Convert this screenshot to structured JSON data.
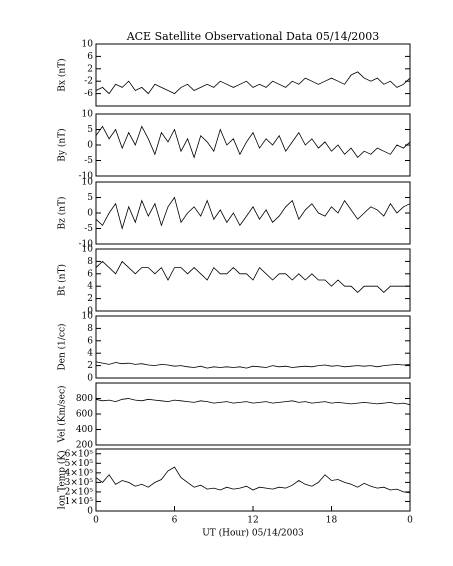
{
  "chart_data": [
    {
      "type": "line",
      "title": "ACE Satellite Observational Data   05/14/2003",
      "ylabel": "Bx (nT)",
      "xlim": [
        0,
        24
      ],
      "ylim": [
        -10,
        10
      ],
      "yticks": [
        -6,
        -2,
        2,
        6,
        10
      ],
      "color": "#000000",
      "x": [
        0,
        0.5,
        1,
        1.5,
        2,
        2.5,
        3,
        3.5,
        4,
        4.5,
        5,
        5.5,
        6,
        6.5,
        7,
        7.5,
        8,
        8.5,
        9,
        9.5,
        10,
        10.5,
        11,
        11.5,
        12,
        12.5,
        13,
        13.5,
        14,
        14.5,
        15,
        15.5,
        16,
        16.5,
        17,
        17.5,
        18,
        18.5,
        19,
        19.5,
        20,
        20.5,
        21,
        21.5,
        22,
        22.5,
        23,
        23.5,
        24
      ],
      "values": [
        -5,
        -4,
        -6,
        -3,
        -4,
        -2,
        -5,
        -4,
        -6,
        -3,
        -4,
        -5,
        -6,
        -4,
        -3,
        -5,
        -4,
        -3,
        -4,
        -2,
        -3,
        -4,
        -3,
        -2,
        -4,
        -3,
        -4,
        -2,
        -3,
        -4,
        -2,
        -3,
        -1,
        -2,
        -3,
        -2,
        -1,
        -2,
        -3,
        0,
        1,
        -1,
        -2,
        -1,
        -3,
        -2,
        -4,
        -3,
        -1
      ]
    },
    {
      "type": "line",
      "ylabel": "By (nT)",
      "xlim": [
        0,
        24
      ],
      "ylim": [
        -10,
        10
      ],
      "yticks": [
        -10,
        -5,
        0,
        5,
        10
      ],
      "color": "#000000",
      "x": [
        0,
        0.5,
        1,
        1.5,
        2,
        2.5,
        3,
        3.5,
        4,
        4.5,
        5,
        5.5,
        6,
        6.5,
        7,
        7.5,
        8,
        8.5,
        9,
        9.5,
        10,
        10.5,
        11,
        11.5,
        12,
        12.5,
        13,
        13.5,
        14,
        14.5,
        15,
        15.5,
        16,
        16.5,
        17,
        17.5,
        18,
        18.5,
        19,
        19.5,
        20,
        20.5,
        21,
        21.5,
        22,
        22.5,
        23,
        23.5,
        24
      ],
      "values": [
        3,
        6,
        2,
        5,
        -1,
        4,
        0,
        6,
        2,
        -3,
        4,
        1,
        5,
        -2,
        2,
        -4,
        3,
        1,
        -2,
        5,
        0,
        2,
        -3,
        1,
        4,
        -1,
        2,
        0,
        3,
        -2,
        1,
        4,
        0,
        2,
        -1,
        1,
        -2,
        0,
        -3,
        -1,
        -4,
        -2,
        -3,
        -1,
        -2,
        -3,
        0,
        -1,
        1
      ]
    },
    {
      "type": "line",
      "ylabel": "Bz (nT)",
      "xlim": [
        0,
        24
      ],
      "ylim": [
        -10,
        10
      ],
      "yticks": [
        -10,
        -5,
        0,
        5,
        10
      ],
      "color": "#000000",
      "x": [
        0,
        0.5,
        1,
        1.5,
        2,
        2.5,
        3,
        3.5,
        4,
        4.5,
        5,
        5.5,
        6,
        6.5,
        7,
        7.5,
        8,
        8.5,
        9,
        9.5,
        10,
        10.5,
        11,
        11.5,
        12,
        12.5,
        13,
        13.5,
        14,
        14.5,
        15,
        15.5,
        16,
        16.5,
        17,
        17.5,
        18,
        18.5,
        19,
        19.5,
        20,
        20.5,
        21,
        21.5,
        22,
        22.5,
        23,
        23.5,
        24
      ],
      "values": [
        -2,
        -4,
        0,
        3,
        -5,
        2,
        -3,
        4,
        -1,
        3,
        -4,
        2,
        5,
        -3,
        0,
        2,
        -1,
        4,
        -2,
        1,
        -3,
        0,
        -4,
        -1,
        2,
        -2,
        1,
        -3,
        -1,
        2,
        4,
        -2,
        1,
        3,
        0,
        -1,
        2,
        0,
        4,
        1,
        -2,
        0,
        2,
        1,
        -1,
        3,
        0,
        2,
        3
      ]
    },
    {
      "type": "line",
      "ylabel": "Bt (nT)",
      "xlim": [
        0,
        24
      ],
      "ylim": [
        0,
        10
      ],
      "yticks": [
        0,
        2,
        4,
        6,
        8,
        10
      ],
      "color": "#000000",
      "x": [
        0,
        0.5,
        1,
        1.5,
        2,
        2.5,
        3,
        3.5,
        4,
        4.5,
        5,
        5.5,
        6,
        6.5,
        7,
        7.5,
        8,
        8.5,
        9,
        9.5,
        10,
        10.5,
        11,
        11.5,
        12,
        12.5,
        13,
        13.5,
        14,
        14.5,
        15,
        15.5,
        16,
        16.5,
        17,
        17.5,
        18,
        18.5,
        19,
        19.5,
        20,
        20.5,
        21,
        21.5,
        22,
        22.5,
        23,
        23.5,
        24
      ],
      "values": [
        7,
        8,
        7,
        6,
        8,
        7,
        6,
        7,
        7,
        6,
        7,
        5,
        7,
        7,
        6,
        7,
        6,
        5,
        7,
        6,
        6,
        7,
        6,
        6,
        5,
        7,
        6,
        5,
        6,
        6,
        5,
        6,
        5,
        6,
        5,
        5,
        4,
        5,
        4,
        4,
        3,
        4,
        4,
        4,
        3,
        4,
        4,
        4,
        4
      ]
    },
    {
      "type": "line",
      "ylabel": "Den (1/cc)",
      "xlim": [
        0,
        24
      ],
      "ylim": [
        0,
        10
      ],
      "yticks": [
        0,
        2,
        4,
        6,
        8,
        10
      ],
      "color": "#000000",
      "x": [
        0,
        0.5,
        1,
        1.5,
        2,
        2.5,
        3,
        3.5,
        4,
        4.5,
        5,
        5.5,
        6,
        6.5,
        7,
        7.5,
        8,
        8.5,
        9,
        9.5,
        10,
        10.5,
        11,
        11.5,
        12,
        12.5,
        13,
        13.5,
        14,
        14.5,
        15,
        15.5,
        16,
        16.5,
        17,
        17.5,
        18,
        18.5,
        19,
        19.5,
        20,
        20.5,
        21,
        21.5,
        22,
        22.5,
        23,
        23.5,
        24
      ],
      "values": [
        2.6,
        2.4,
        2.2,
        2.5,
        2.3,
        2.4,
        2.2,
        2.3,
        2.1,
        2.0,
        2.2,
        2.1,
        1.9,
        2.0,
        1.8,
        1.7,
        1.9,
        1.6,
        1.8,
        1.7,
        1.8,
        1.7,
        1.8,
        1.6,
        1.9,
        1.8,
        1.7,
        2.0,
        1.8,
        1.9,
        1.7,
        1.8,
        1.9,
        1.8,
        2.0,
        2.1,
        1.9,
        2.0,
        1.8,
        1.9,
        2.0,
        1.9,
        2.0,
        1.8,
        2.0,
        2.1,
        2.2,
        2.1,
        2.2
      ]
    },
    {
      "type": "line",
      "ylabel": "Vel (Km/sec)",
      "xlim": [
        0,
        24
      ],
      "ylim": [
        200,
        1000
      ],
      "yticks": [
        200,
        400,
        600,
        800
      ],
      "color": "#000000",
      "x": [
        0,
        0.5,
        1,
        1.5,
        2,
        2.5,
        3,
        3.5,
        4,
        4.5,
        5,
        5.5,
        6,
        6.5,
        7,
        7.5,
        8,
        8.5,
        9,
        9.5,
        10,
        10.5,
        11,
        11.5,
        12,
        12.5,
        13,
        13.5,
        14,
        14.5,
        15,
        15.5,
        16,
        16.5,
        17,
        17.5,
        18,
        18.5,
        19,
        19.5,
        20,
        20.5,
        21,
        21.5,
        22,
        22.5,
        23,
        23.5,
        24
      ],
      "values": [
        790,
        770,
        780,
        760,
        790,
        800,
        780,
        770,
        790,
        780,
        770,
        760,
        780,
        770,
        760,
        750,
        770,
        760,
        740,
        750,
        760,
        740,
        750,
        760,
        740,
        750,
        760,
        740,
        750,
        760,
        770,
        750,
        760,
        740,
        750,
        760,
        740,
        750,
        740,
        730,
        740,
        750,
        740,
        730,
        740,
        750,
        730,
        740,
        720
      ]
    },
    {
      "type": "line",
      "ylabel": "Ion Temp (K)",
      "xlabel": "UT (Hour)   05/14/2003",
      "xlim": [
        0,
        24
      ],
      "xticks": [
        0,
        6,
        12,
        18,
        {
          "value": 24,
          "label": "0"
        }
      ],
      "ylim": [
        0,
        650000
      ],
      "yticks": [
        0,
        {
          "value": 100000,
          "label": "1×10⁵"
        },
        {
          "value": 200000,
          "label": "2×10⁵"
        },
        {
          "value": 300000,
          "label": "3×10⁵"
        },
        {
          "value": 400000,
          "label": "4×10⁵"
        },
        {
          "value": 500000,
          "label": "5×10⁵"
        },
        {
          "value": 600000,
          "label": "6×10⁵"
        }
      ],
      "color": "#000000",
      "x": [
        0,
        0.5,
        1,
        1.5,
        2,
        2.5,
        3,
        3.5,
        4,
        4.5,
        5,
        5.5,
        6,
        6.5,
        7,
        7.5,
        8,
        8.5,
        9,
        9.5,
        10,
        10.5,
        11,
        11.5,
        12,
        12.5,
        13,
        13.5,
        14,
        14.5,
        15,
        15.5,
        16,
        16.5,
        17,
        17.5,
        18,
        18.5,
        19,
        19.5,
        20,
        20.5,
        21,
        21.5,
        22,
        22.5,
        23,
        23.5,
        24
      ],
      "values": [
        350000,
        300000,
        380000,
        280000,
        320000,
        300000,
        260000,
        280000,
        250000,
        300000,
        330000,
        420000,
        460000,
        350000,
        300000,
        250000,
        270000,
        230000,
        240000,
        220000,
        250000,
        230000,
        240000,
        260000,
        220000,
        250000,
        240000,
        230000,
        250000,
        240000,
        270000,
        320000,
        280000,
        260000,
        300000,
        380000,
        320000,
        330000,
        300000,
        280000,
        250000,
        290000,
        260000,
        240000,
        250000,
        220000,
        230000,
        200000,
        190000
      ]
    }
  ]
}
